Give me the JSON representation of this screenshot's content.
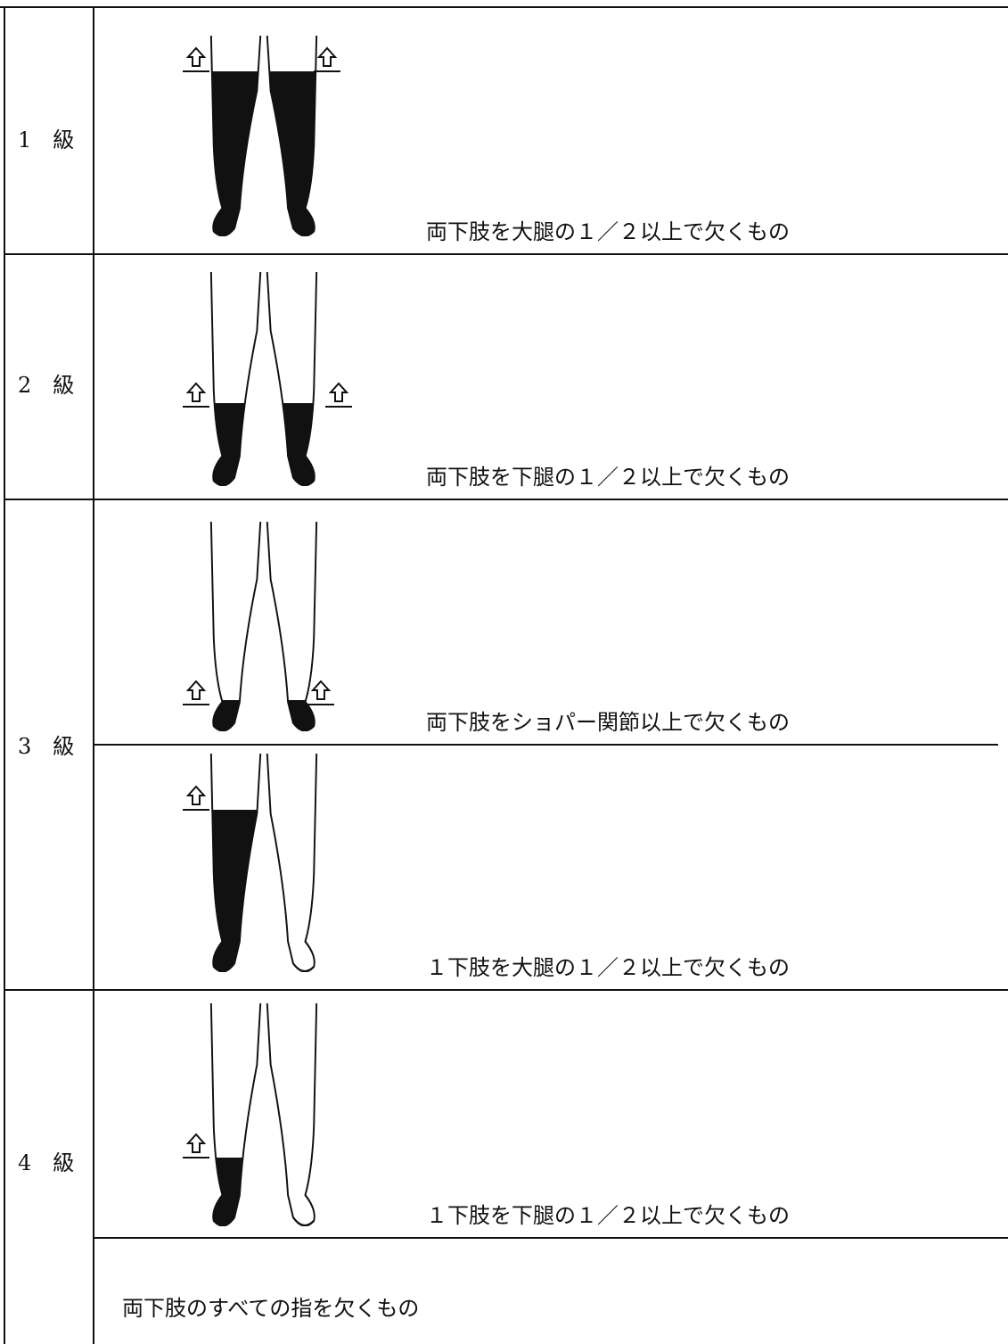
{
  "rows": [
    {
      "grade": "1　級",
      "items": [
        "両下肢を大腿の１／２以上で欠くもの"
      ]
    },
    {
      "grade": "2　級",
      "items": [
        "両下肢を下腿の１／２以上で欠くもの"
      ]
    },
    {
      "grade": "3　級",
      "items": [
        "両下肢をショパー関節以上で欠くもの",
        "１下肢を大腿の１／２以上で欠くもの"
      ]
    },
    {
      "grade": "4　級",
      "items": [
        "１下肢を下腿の１／２以上で欠くもの",
        "両下肢のすべての指を欠くもの"
      ]
    }
  ]
}
